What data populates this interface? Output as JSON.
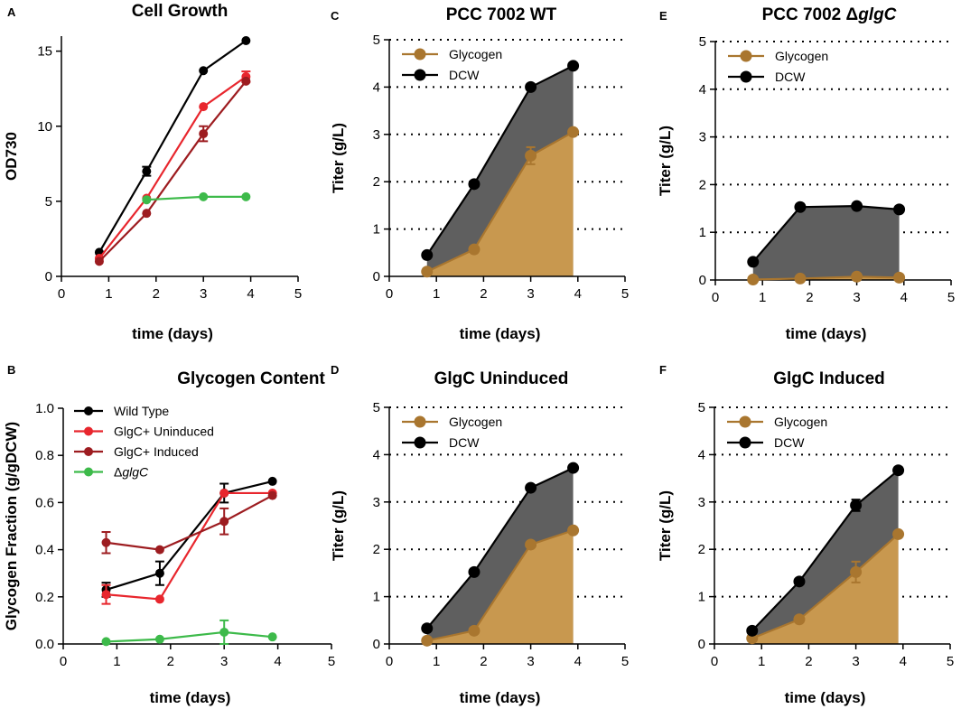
{
  "colors": {
    "wild_type": "#000000",
    "uninduced": "#e8262d",
    "induced": "#9d1c20",
    "glgc_null": "#3dba4a",
    "glycogen": "#a9762f",
    "glycogen_fill": "#c8984f",
    "dcw": "#000000",
    "dcw_fill": "#5f5f5f"
  },
  "chart_data": [
    {
      "id": "A",
      "panel_label": "A",
      "type": "line",
      "title": "Cell Growth",
      "xlabel": "time (days)",
      "ylabel": "OD730",
      "xlim": [
        0,
        5
      ],
      "ylim": [
        0,
        16
      ],
      "xticks": [
        "0",
        "1",
        "2",
        "3",
        "4",
        "5"
      ],
      "yticks": [
        "0",
        "5",
        "10",
        "15"
      ],
      "ytick_values": [
        0,
        5,
        10,
        15
      ],
      "grid": false,
      "legend": "none",
      "series": [
        {
          "name": "Wild Type",
          "color_key": "wild_type",
          "x": [
            0.8,
            1.8,
            3.0,
            3.9
          ],
          "values": [
            1.6,
            7.0,
            13.7,
            15.7
          ],
          "err": [
            0,
            0.3,
            0,
            0
          ]
        },
        {
          "name": "GlgC+ Uninduced",
          "color_key": "uninduced",
          "x": [
            0.8,
            1.8,
            3.0,
            3.9
          ],
          "values": [
            1.2,
            5.2,
            11.3,
            13.3
          ],
          "err": [
            0,
            0,
            0,
            0.35
          ]
        },
        {
          "name": "GlgC+ Induced",
          "color_key": "induced",
          "x": [
            0.8,
            1.8,
            3.0,
            3.9
          ],
          "values": [
            1.0,
            4.2,
            9.5,
            13.0
          ],
          "err": [
            0,
            0,
            0.5,
            0
          ]
        },
        {
          "name": "ΔglgC",
          "color_key": "glgc_null",
          "x": [
            1.8,
            3.0,
            3.9
          ],
          "values": [
            5.1,
            5.3,
            5.3
          ],
          "err": [
            0,
            0,
            0
          ]
        }
      ]
    },
    {
      "id": "B",
      "panel_label": "B",
      "type": "line",
      "title": "Glycogen Content",
      "xlabel": "time (days)",
      "ylabel": "Glycogen Fraction (g/gDCW)",
      "xlim": [
        0,
        5
      ],
      "ylim": [
        0,
        1
      ],
      "xticks": [
        "0",
        "1",
        "2",
        "3",
        "4",
        "5"
      ],
      "yticks": [
        "0.0",
        "0.2",
        "0.4",
        "0.6",
        "0.8",
        "1.0"
      ],
      "ytick_values": [
        0,
        0.2,
        0.4,
        0.6,
        0.8,
        1.0
      ],
      "grid": false,
      "legend": "top-left",
      "series": [
        {
          "name": "Wild Type",
          "color_key": "wild_type",
          "x": [
            0.8,
            1.8,
            3.0,
            3.9
          ],
          "values": [
            0.23,
            0.3,
            0.64,
            0.69
          ],
          "err": [
            0.03,
            0.05,
            0.04,
            0
          ]
        },
        {
          "name": "GlgC+ Uninduced",
          "color_key": "uninduced",
          "x": [
            0.8,
            1.8,
            3.0,
            3.9
          ],
          "values": [
            0.21,
            0.19,
            0.64,
            0.64
          ],
          "err": [
            0.04,
            0,
            0,
            0
          ]
        },
        {
          "name": "GlgC+ Induced",
          "color_key": "induced",
          "x": [
            0.8,
            1.8,
            3.0,
            3.9
          ],
          "values": [
            0.43,
            0.4,
            0.52,
            0.63
          ],
          "err": [
            0.045,
            0,
            0.055,
            0
          ]
        },
        {
          "name": "ΔglgC",
          "color_key": "glgc_null",
          "x": [
            0.8,
            1.8,
            3.0,
            3.9
          ],
          "values": [
            0.01,
            0.02,
            0.05,
            0.03
          ],
          "err": [
            0,
            0,
            0.05,
            0
          ]
        }
      ],
      "legend_entries": [
        {
          "label": "Wild Type",
          "color_key": "wild_type"
        },
        {
          "label": "GlgC+ Uninduced",
          "color_key": "uninduced"
        },
        {
          "label": "GlgC+ Induced",
          "color_key": "induced"
        },
        {
          "label_prefix": "Δ",
          "label_italic": "glgC",
          "color_key": "glgc_null"
        }
      ]
    },
    {
      "id": "C",
      "panel_label": "C",
      "type": "area",
      "title": "PCC 7002  WT",
      "xlabel": "time (days)",
      "ylabel": "Titer (g/L)",
      "xlim": [
        0,
        5
      ],
      "ylim": [
        0,
        5
      ],
      "xticks": [
        "0",
        "1",
        "2",
        "3",
        "4",
        "5"
      ],
      "yticks": [
        "0",
        "1",
        "2",
        "3",
        "4",
        "5"
      ],
      "ytick_values": [
        0,
        1,
        2,
        3,
        4,
        5
      ],
      "grid": true,
      "legend": "top-left",
      "x": [
        0.8,
        1.8,
        3.0,
        3.9
      ],
      "series": [
        {
          "name": "Glycogen",
          "color_key": "glycogen",
          "fill_key": "glycogen_fill",
          "values": [
            0.1,
            0.57,
            2.55,
            3.05
          ],
          "err": [
            0,
            0,
            0.18,
            0
          ]
        },
        {
          "name": "DCW",
          "color_key": "dcw",
          "fill_key": "dcw_fill",
          "values": [
            0.45,
            1.95,
            4.0,
            4.45
          ],
          "err": [
            0,
            0,
            0,
            0
          ]
        }
      ]
    },
    {
      "id": "D",
      "panel_label": "D",
      "type": "area",
      "title": "GlgC Uninduced",
      "xlabel": "time (days)",
      "ylabel": "Titer (g/L)",
      "xlim": [
        0,
        5
      ],
      "ylim": [
        0,
        5
      ],
      "xticks": [
        "0",
        "1",
        "2",
        "3",
        "4",
        "5"
      ],
      "yticks": [
        "0",
        "1",
        "2",
        "3",
        "4",
        "5"
      ],
      "ytick_values": [
        0,
        1,
        2,
        3,
        4,
        5
      ],
      "grid": true,
      "legend": "top-left",
      "x": [
        0.8,
        1.8,
        3.0,
        3.9
      ],
      "series": [
        {
          "name": "Glycogen",
          "color_key": "glycogen",
          "fill_key": "glycogen_fill",
          "values": [
            0.07,
            0.28,
            2.1,
            2.4
          ],
          "err": [
            0,
            0,
            0,
            0
          ]
        },
        {
          "name": "DCW",
          "color_key": "dcw",
          "fill_key": "dcw_fill",
          "values": [
            0.33,
            1.52,
            3.3,
            3.72
          ],
          "err": [
            0,
            0,
            0,
            0
          ]
        }
      ]
    },
    {
      "id": "E",
      "panel_label": "E",
      "type": "area",
      "title_prefix": "PCC 7002 Δ",
      "title_italic": "glgC",
      "xlabel": "time (days)",
      "ylabel": "Titer (g/L)",
      "xlim": [
        0,
        5
      ],
      "ylim": [
        0,
        5
      ],
      "xticks": [
        "0",
        "1",
        "2",
        "3",
        "4",
        "5"
      ],
      "yticks": [
        "0",
        "1",
        "2",
        "3",
        "4",
        "5"
      ],
      "ytick_values": [
        0,
        1,
        2,
        3,
        4,
        5
      ],
      "grid": true,
      "legend": "top-left",
      "x": [
        0.8,
        1.8,
        3.0,
        3.9
      ],
      "series": [
        {
          "name": "Glycogen",
          "color_key": "glycogen",
          "fill_key": "glycogen_fill",
          "values": [
            0.01,
            0.03,
            0.07,
            0.05
          ],
          "err": [
            0,
            0,
            0,
            0
          ]
        },
        {
          "name": "DCW",
          "color_key": "dcw",
          "fill_key": "dcw_fill",
          "values": [
            0.38,
            1.53,
            1.55,
            1.48
          ],
          "err": [
            0,
            0,
            0,
            0
          ]
        }
      ]
    },
    {
      "id": "F",
      "panel_label": "F",
      "type": "area",
      "title": "GlgC Induced",
      "xlabel": "time (days)",
      "ylabel": "Titer (g/L)",
      "xlim": [
        0,
        5
      ],
      "ylim": [
        0,
        5
      ],
      "xticks": [
        "0",
        "1",
        "2",
        "3",
        "4",
        "5"
      ],
      "yticks": [
        "0",
        "1",
        "2",
        "3",
        "4",
        "5"
      ],
      "ytick_values": [
        0,
        1,
        2,
        3,
        4,
        5
      ],
      "grid": true,
      "legend": "top-left",
      "x": [
        0.8,
        1.8,
        3.0,
        3.9
      ],
      "series": [
        {
          "name": "Glycogen",
          "color_key": "glycogen",
          "fill_key": "glycogen_fill",
          "values": [
            0.12,
            0.52,
            1.52,
            2.32
          ],
          "err": [
            0,
            0,
            0.22,
            0
          ]
        },
        {
          "name": "DCW",
          "color_key": "dcw",
          "fill_key": "dcw_fill",
          "values": [
            0.28,
            1.32,
            2.93,
            3.67
          ],
          "err": [
            0,
            0,
            0.12,
            0
          ]
        }
      ]
    }
  ]
}
